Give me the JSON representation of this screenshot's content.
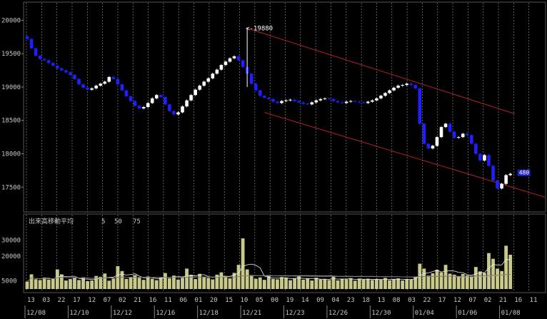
{
  "chart_data": {
    "type": "candlestick",
    "price_axis": {
      "ticks": [
        "20000",
        "19500",
        "19000",
        "18500",
        "18000",
        "17500"
      ],
      "ylim": [
        17150,
        20250
      ]
    },
    "volume_axis": {
      "ticks": [
        "30000",
        "20000",
        "5000"
      ],
      "ylim": [
        0,
        38000
      ]
    },
    "volume_legend": {
      "label": "出来高移動平均",
      "periods": [
        "5",
        "50",
        "75"
      ]
    },
    "peak_annotation": "19880",
    "last_price_label": "480",
    "hour_ticks": [
      "13",
      "03",
      "22",
      "17",
      "12",
      "07",
      "02",
      "21",
      "16",
      "11",
      "06",
      "01",
      "20",
      "15",
      "10",
      "05",
      "00",
      "19",
      "14",
      "09",
      "04",
      "23",
      "18",
      "13",
      "08",
      "03",
      "22",
      "17",
      "12",
      "07",
      "02",
      "21",
      "16",
      "11"
    ],
    "date_labels": [
      "12/08",
      "12/10",
      "12/12",
      "12/16",
      "12/18",
      "12/21",
      "12/23",
      "12/26",
      "12/30",
      "01/04",
      "01/06",
      "01/08"
    ],
    "price_series": [
      19720,
      19580,
      19470,
      19420,
      19400,
      19360,
      19320,
      19280,
      19250,
      19220,
      19180,
      19120,
      19040,
      18990,
      18960,
      18980,
      19020,
      19050,
      19080,
      19150,
      19120,
      19040,
      18950,
      18860,
      18790,
      18720,
      18680,
      18700,
      18760,
      18830,
      18880,
      18850,
      18740,
      18640,
      18590,
      18620,
      18710,
      18800,
      18880,
      18960,
      19020,
      19080,
      19130,
      19200,
      19260,
      19330,
      19380,
      19430,
      19460,
      19400,
      19300,
      19200,
      19050,
      18950,
      18870,
      18840,
      18820,
      18780,
      18760,
      18790,
      18800,
      18810,
      18790,
      18770,
      18750,
      18740,
      18770,
      18800,
      18820,
      18830,
      18820,
      18790,
      18770,
      18760,
      18780,
      18790,
      18780,
      18770,
      18760,
      18780,
      18800,
      18830,
      18870,
      18910,
      18950,
      18990,
      19020,
      19030,
      19050,
      19030,
      18980,
      18450,
      18150,
      18080,
      18120,
      18250,
      18400,
      18450,
      18330,
      18240,
      18250,
      18300,
      18280,
      18150,
      18000,
      17900,
      17980,
      17820,
      17600,
      17480,
      17550,
      17680,
      17700
    ],
    "volume_series": [
      4500,
      9000,
      6000,
      5500,
      7000,
      5800,
      6200,
      12000,
      9000,
      5200,
      6100,
      6800,
      5500,
      7200,
      4800,
      5200,
      8000,
      7500,
      9500,
      5100,
      6400,
      14000,
      11000,
      6200,
      7000,
      8500,
      6900,
      5600,
      7700,
      6300,
      5400,
      7100,
      9800,
      6600,
      8200,
      5800,
      6900,
      12500,
      8700,
      6100,
      9300,
      7400,
      6800,
      5900,
      8800,
      10200,
      7300,
      6500,
      9900,
      14800,
      31000,
      12000,
      8500,
      6300,
      7100,
      5600,
      8400,
      6200,
      5900,
      7300,
      6800,
      5400,
      6600,
      7900,
      5700,
      6400,
      5200,
      6900,
      5800,
      6100,
      5500,
      7600,
      5300,
      6200,
      5900,
      6700,
      5100,
      6400,
      5800,
      6300,
      5500,
      6100,
      5700,
      6800,
      5400,
      5900,
      6500,
      5200,
      6100,
      5800,
      7400,
      15500,
      12500,
      8200,
      9600,
      11800,
      10200,
      14800,
      9400,
      8800,
      7900,
      9200,
      8400,
      7600,
      13500,
      10800,
      9900,
      22000,
      18500,
      12500,
      11000,
      26500,
      21000
    ],
    "channel_upper": {
      "start": [
        51,
        19880
      ],
      "end": [
        113,
        18600
      ]
    },
    "channel_lower": {
      "start": [
        55,
        18620
      ],
      "end": [
        120,
        17350
      ]
    }
  }
}
